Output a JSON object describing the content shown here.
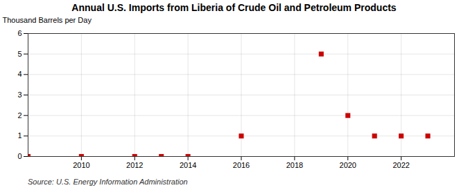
{
  "chart_data": {
    "type": "scatter",
    "title": "Annual U.S. Imports from Liberia of Crude Oil and Petroleum Products",
    "ylabel": "Thousand Barrels per Day",
    "annotations": [
      "Source: U.S. Energy Information Administration"
    ],
    "x": [
      2008,
      2010,
      2012,
      2013,
      2014,
      2016,
      2019,
      2020,
      2021,
      2022,
      2023
    ],
    "values": [
      0,
      0,
      0,
      0,
      0,
      1,
      5,
      2,
      1,
      1,
      1
    ],
    "color": "#cc0000",
    "marker": "square",
    "xlim": [
      2008.0,
      2024.0
    ],
    "ylim": [
      0,
      6
    ],
    "xticks": [
      2010,
      2012,
      2014,
      2016,
      2018,
      2020,
      2022
    ],
    "yticks": [
      0,
      1,
      2,
      3,
      4,
      5,
      6
    ],
    "grid": true
  }
}
